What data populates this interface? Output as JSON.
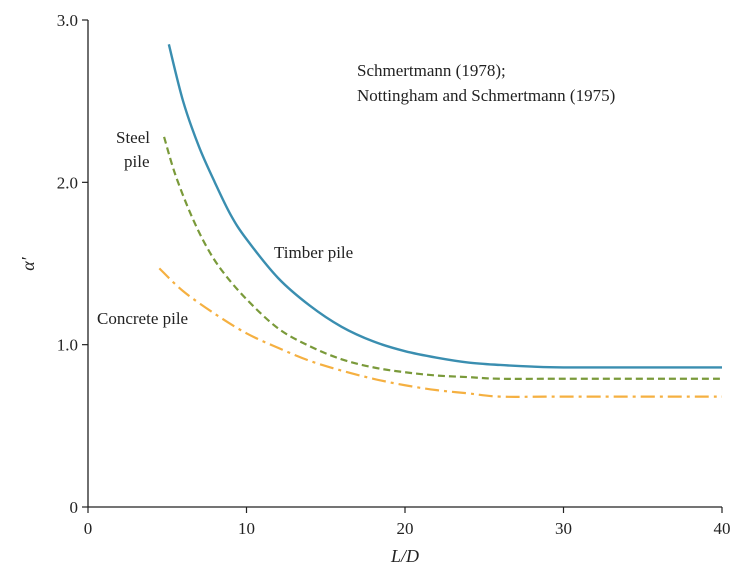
{
  "chart_data": {
    "type": "line",
    "xlabel": "L/D",
    "ylabel": "α′",
    "xlim": [
      0,
      40
    ],
    "ylim": [
      0,
      3.0
    ],
    "xticks": [
      "0",
      "10",
      "20",
      "30",
      "40"
    ],
    "yticks": [
      "0",
      "1.0",
      "2.0",
      "3.0"
    ],
    "grid": false,
    "annotations": {
      "source_line1": "Schmertmann (1978);",
      "source_line2": "Nottingham and Schmertmann (1975)",
      "steel_line1": "Steel",
      "steel_line2": "pile",
      "timber": "Timber pile",
      "concrete": "Concrete pile"
    },
    "series": [
      {
        "id": "timber",
        "color": "#3a8eb0",
        "style": "solid",
        "points": [
          [
            5.1,
            2.85
          ],
          [
            6,
            2.5
          ],
          [
            7,
            2.22
          ],
          [
            8,
            2.0
          ],
          [
            9,
            1.8
          ],
          [
            10,
            1.65
          ],
          [
            12,
            1.41
          ],
          [
            14,
            1.24
          ],
          [
            16,
            1.11
          ],
          [
            18,
            1.02
          ],
          [
            20,
            0.96
          ],
          [
            22,
            0.92
          ],
          [
            24,
            0.89
          ],
          [
            26,
            0.875
          ],
          [
            28,
            0.865
          ],
          [
            30,
            0.86
          ],
          [
            35,
            0.86
          ],
          [
            40,
            0.86
          ]
        ]
      },
      {
        "id": "steel",
        "color": "#7a9a3a",
        "style": "dashed",
        "points": [
          [
            4.8,
            2.28
          ],
          [
            5.5,
            2.05
          ],
          [
            6.5,
            1.8
          ],
          [
            7.5,
            1.6
          ],
          [
            8.5,
            1.45
          ],
          [
            10,
            1.28
          ],
          [
            12,
            1.1
          ],
          [
            14,
            0.99
          ],
          [
            16,
            0.91
          ],
          [
            18,
            0.86
          ],
          [
            20,
            0.83
          ],
          [
            22,
            0.81
          ],
          [
            24,
            0.8
          ],
          [
            26,
            0.79
          ],
          [
            30,
            0.79
          ],
          [
            40,
            0.79
          ]
        ]
      },
      {
        "id": "concrete",
        "color": "#f5b041",
        "style": "dashdot",
        "points": [
          [
            4.5,
            1.47
          ],
          [
            6,
            1.33
          ],
          [
            8,
            1.19
          ],
          [
            10,
            1.07
          ],
          [
            12,
            0.98
          ],
          [
            14,
            0.9
          ],
          [
            16,
            0.84
          ],
          [
            18,
            0.79
          ],
          [
            20,
            0.75
          ],
          [
            22,
            0.72
          ],
          [
            24,
            0.7
          ],
          [
            26,
            0.68
          ],
          [
            30,
            0.68
          ],
          [
            40,
            0.68
          ]
        ]
      }
    ]
  }
}
